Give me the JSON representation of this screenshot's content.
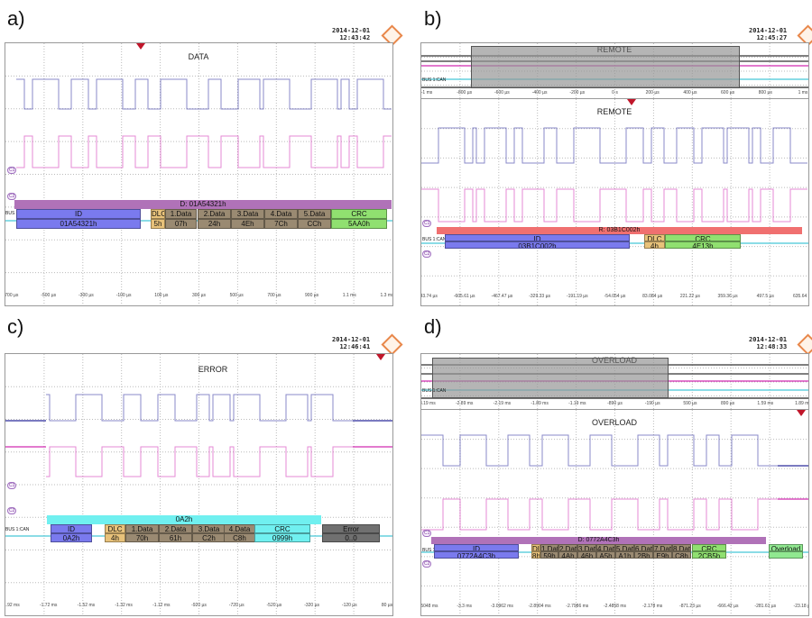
{
  "panels": {
    "a": {
      "label": "a)",
      "date": "2014-12-01",
      "time": "12:43:42",
      "title": "DATA",
      "bus_label": "BUS 1:CAN",
      "frame_header": "D: 01A54321h",
      "segments": [
        {
          "name": "ID",
          "value": "01A54321h"
        },
        {
          "name": "DLC",
          "value": "5h"
        },
        {
          "name": "1.Data",
          "value": "07h"
        },
        {
          "name": "2.Data",
          "value": "24h"
        },
        {
          "name": "3.Data",
          "value": "4Eh"
        },
        {
          "name": "4.Data",
          "value": "7Ch"
        },
        {
          "name": "5.Data",
          "value": "CCh"
        },
        {
          "name": "CRC",
          "value": "5AA0h"
        }
      ],
      "axis": [
        "-700 µs",
        "-500 µs",
        "-300 µs",
        "-100 µs",
        "100 µs",
        "300 µs",
        "500 µs",
        "700 µs",
        "900 µs",
        "1.1 ms",
        "1.3 ms"
      ]
    },
    "b": {
      "label": "b)",
      "date": "2014-12-01",
      "time": "12:45:27",
      "title": "REMOTE",
      "overview_title": "REMOTE",
      "bus_label": "BUS 1:CAN",
      "frame_header": "R: 03B1C002h",
      "segments": [
        {
          "name": "ID",
          "value": "03B1C002h"
        },
        {
          "name": "DLC",
          "value": "4h"
        },
        {
          "name": "CRC",
          "value": "4E13h"
        }
      ],
      "overview_axis": [
        "-1 ms",
        "-800 µs",
        "-600 µs",
        "-400 µs",
        "-200 µs",
        "0 s",
        "200 µs",
        "400 µs",
        "600 µs",
        "800 µs",
        "1 ms"
      ],
      "axis": [
        "-743.74 µs",
        "-605.61 µs",
        "-467.47 µs",
        "-329.33 µs",
        "-191.19 µs",
        "-54.054 µs",
        "83.084 µs",
        "221.22 µs",
        "359.36 µs",
        "497.5 µs",
        "635.64 µs"
      ]
    },
    "c": {
      "label": "c)",
      "date": "2014-12-01",
      "time": "12:46:41",
      "title": "ERROR",
      "bus_label": "BUS 1:CAN",
      "frame_header": "0A2h",
      "segments": [
        {
          "name": "ID",
          "value": "0A2h"
        },
        {
          "name": "DLC",
          "value": "4h"
        },
        {
          "name": "1.Data",
          "value": "70h"
        },
        {
          "name": "2.Data",
          "value": "61h"
        },
        {
          "name": "3.Data",
          "value": "C2h"
        },
        {
          "name": "4.Data",
          "value": "C8h"
        },
        {
          "name": "CRC",
          "value": "0999h"
        },
        {
          "name": "Error",
          "value": "0..0"
        }
      ],
      "axis": [
        "-1.92 ms",
        "-1.72 ms",
        "-1.52 ms",
        "-1.32 ms",
        "-1.12 ms",
        "-920 µs",
        "-720 µs",
        "-520 µs",
        "-320 µs",
        "-120 µs",
        "80 µs"
      ]
    },
    "d": {
      "label": "d)",
      "date": "2014-12-01",
      "time": "12:48:33",
      "title": "OVERLOAD",
      "overview_title": "OVERLOAD",
      "bus_label": "BUS 1:CAN",
      "frame_header": "D: 0772A4C3h",
      "segments": [
        {
          "name": "ID",
          "value": "0772A4C3h"
        },
        {
          "name": "DLC",
          "value": "8h"
        },
        {
          "name": "1.Data",
          "value": "59h"
        },
        {
          "name": "2.Data",
          "value": "4Ah"
        },
        {
          "name": "3.Data",
          "value": "46h"
        },
        {
          "name": "4.Data",
          "value": "A5h"
        },
        {
          "name": "5.Data",
          "value": "A1h"
        },
        {
          "name": "6.Data",
          "value": "2Bh"
        },
        {
          "name": "7.Data",
          "value": "E9h"
        },
        {
          "name": "8.Data",
          "value": "C8h"
        },
        {
          "name": "CRC",
          "value": "2CB5h"
        },
        {
          "name": "Overload",
          "value": ""
        }
      ],
      "overview_axis": [
        "-3.19 ms",
        "-2.89 ms",
        "-2.19 ms",
        "-1.89 ms",
        "-1.19 ms",
        "-890 µs",
        "-190 µs",
        "590 µs",
        "890 µs",
        "1.59 ms",
        "1.89 ms"
      ],
      "axis": [
        "-3.5048 ms",
        "-3.3 ms",
        "-3.0962 ms",
        "-2.8904 ms",
        "-2.7986 ms",
        "-2.4858 ms",
        "-2.178 ms",
        "-871.23 µs",
        "-666.42 µs",
        "-281.61 µs",
        "-23.18 µs"
      ]
    }
  },
  "colors": {
    "ch_blue": "#2a2a9a",
    "ch_magenta": "#d02ab0",
    "bus_cyan": "#46c8d8",
    "id": "#7a7aee",
    "dlc": "#e8c27a",
    "data": "#9a8a72",
    "crc": "#90e070",
    "frame_d": "#b072b8",
    "frame_r": "#f07070",
    "frame_err": "#70f0f0",
    "error": "#707070",
    "overload": "#90e890",
    "trigger": "#c0162a"
  }
}
